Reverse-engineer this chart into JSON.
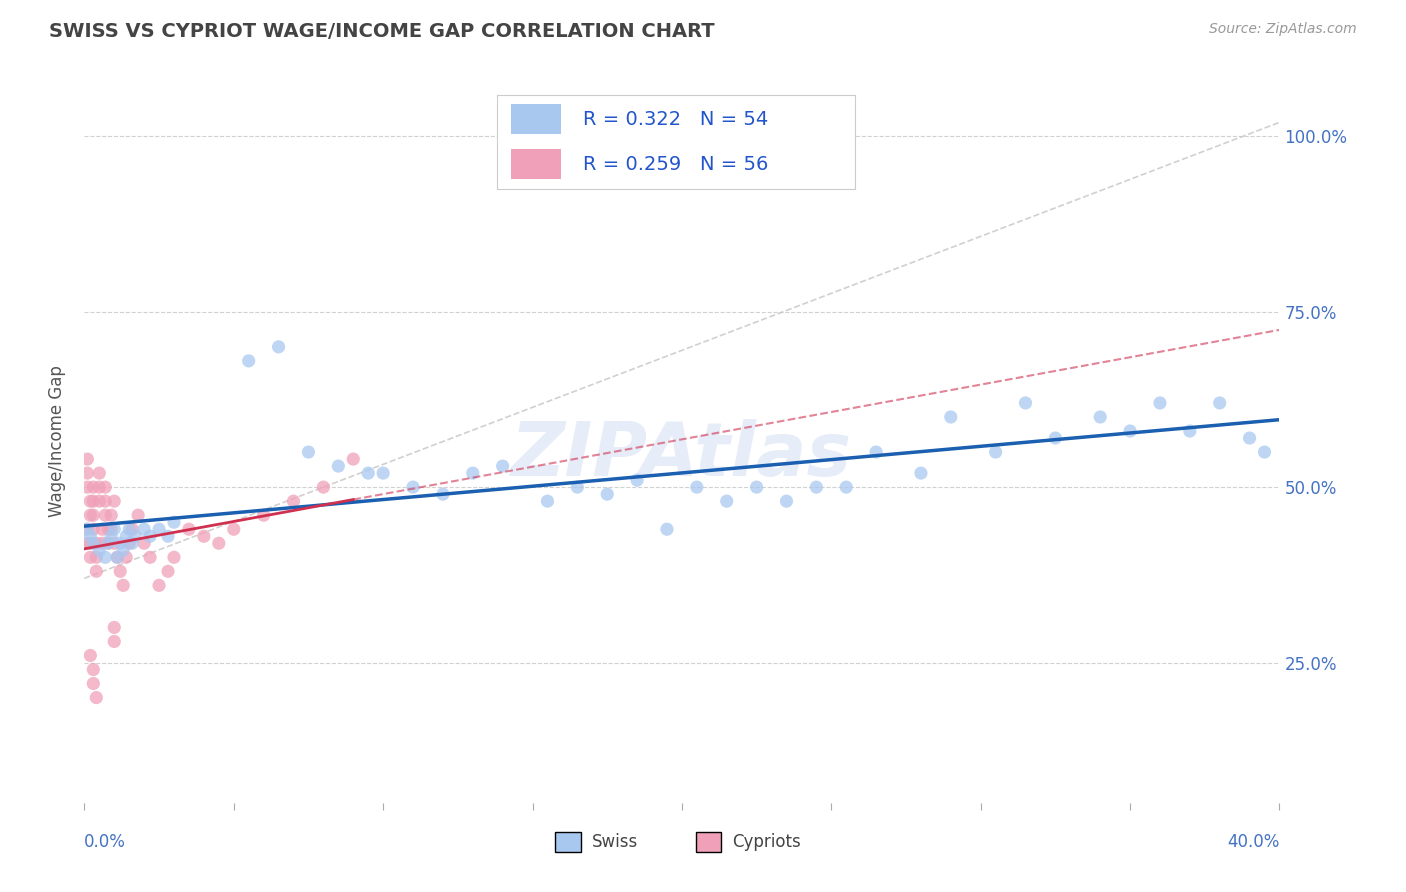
{
  "title": "SWISS VS CYPRIOT WAGE/INCOME GAP CORRELATION CHART",
  "source": "Source: ZipAtlas.com",
  "ylabel": "Wage/Income Gap",
  "y_ticks": [
    0.25,
    0.5,
    0.75,
    1.0
  ],
  "y_tick_labels": [
    "25.0%",
    "50.0%",
    "75.0%",
    "100.0%"
  ],
  "xlim": [
    0.0,
    0.4
  ],
  "ylim": [
    0.05,
    1.08
  ],
  "swiss_color": "#a8c8f0",
  "cypriot_color": "#f0a0b8",
  "swiss_line_color": "#1a5fb0",
  "cypriot_line_color": "#d03050",
  "diag_color": "#c8c8c8",
  "swiss_R": 0.322,
  "swiss_N": 54,
  "cypriot_R": 0.259,
  "cypriot_N": 56,
  "background_color": "#ffffff",
  "grid_color": "#cccccc",
  "watermark": "ZIPAtlas",
  "swiss_x": [
    0.001,
    0.002,
    0.003,
    0.005,
    0.007,
    0.008,
    0.009,
    0.01,
    0.011,
    0.012,
    0.013,
    0.014,
    0.015,
    0.016,
    0.017,
    0.02,
    0.022,
    0.025,
    0.028,
    0.03,
    0.055,
    0.065,
    0.075,
    0.085,
    0.095,
    0.1,
    0.11,
    0.12,
    0.13,
    0.14,
    0.155,
    0.165,
    0.175,
    0.185,
    0.195,
    0.205,
    0.215,
    0.225,
    0.235,
    0.245,
    0.255,
    0.265,
    0.28,
    0.29,
    0.305,
    0.315,
    0.325,
    0.34,
    0.35,
    0.36,
    0.37,
    0.38,
    0.39,
    0.395
  ],
  "swiss_y": [
    0.44,
    0.43,
    0.42,
    0.41,
    0.4,
    0.42,
    0.43,
    0.44,
    0.4,
    0.42,
    0.41,
    0.43,
    0.44,
    0.42,
    0.43,
    0.44,
    0.43,
    0.44,
    0.43,
    0.45,
    0.68,
    0.7,
    0.55,
    0.53,
    0.52,
    0.52,
    0.5,
    0.49,
    0.52,
    0.53,
    0.48,
    0.5,
    0.49,
    0.51,
    0.44,
    0.5,
    0.48,
    0.5,
    0.48,
    0.5,
    0.5,
    0.55,
    0.52,
    0.6,
    0.55,
    0.62,
    0.57,
    0.6,
    0.58,
    0.62,
    0.58,
    0.62,
    0.57,
    0.55
  ],
  "cypriot_x": [
    0.001,
    0.001,
    0.001,
    0.001,
    0.001,
    0.002,
    0.002,
    0.002,
    0.002,
    0.003,
    0.003,
    0.003,
    0.003,
    0.004,
    0.004,
    0.004,
    0.005,
    0.005,
    0.005,
    0.006,
    0.006,
    0.007,
    0.007,
    0.007,
    0.008,
    0.008,
    0.009,
    0.009,
    0.01,
    0.01,
    0.011,
    0.012,
    0.013,
    0.014,
    0.015,
    0.016,
    0.018,
    0.02,
    0.022,
    0.025,
    0.028,
    0.03,
    0.035,
    0.04,
    0.045,
    0.05,
    0.06,
    0.07,
    0.08,
    0.09,
    0.01,
    0.01,
    0.002,
    0.003,
    0.003,
    0.004
  ],
  "cypriot_y": [
    0.42,
    0.44,
    0.5,
    0.52,
    0.54,
    0.46,
    0.48,
    0.42,
    0.4,
    0.5,
    0.48,
    0.46,
    0.44,
    0.42,
    0.4,
    0.38,
    0.52,
    0.5,
    0.48,
    0.44,
    0.42,
    0.5,
    0.48,
    0.46,
    0.44,
    0.42,
    0.46,
    0.44,
    0.48,
    0.42,
    0.4,
    0.38,
    0.36,
    0.4,
    0.42,
    0.44,
    0.46,
    0.42,
    0.4,
    0.36,
    0.38,
    0.4,
    0.44,
    0.43,
    0.42,
    0.44,
    0.46,
    0.48,
    0.5,
    0.54,
    0.3,
    0.28,
    0.26,
    0.24,
    0.22,
    0.2
  ]
}
